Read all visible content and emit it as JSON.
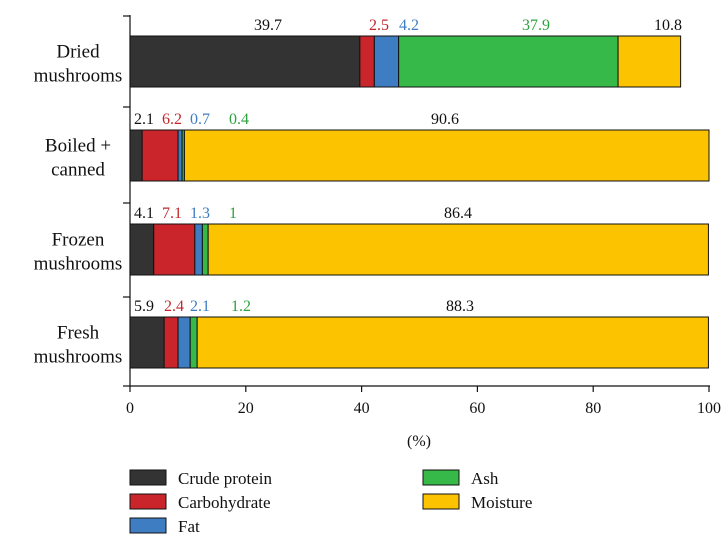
{
  "chart_data": {
    "type": "bar",
    "orientation": "horizontal",
    "stacked": true,
    "categories": [
      "Dried mushrooms",
      "Boiled + canned",
      "Frozen mushrooms",
      "Fresh mushrooms"
    ],
    "category_lines": [
      [
        "Dried",
        "mushrooms"
      ],
      [
        "Boiled +",
        "canned"
      ],
      [
        "Frozen",
        "mushrooms"
      ],
      [
        "Fresh",
        "mushrooms"
      ]
    ],
    "series": [
      {
        "name": "Crude protein",
        "color": "#333333",
        "label_color": "#111111",
        "values": [
          39.7,
          2.1,
          4.1,
          5.9
        ]
      },
      {
        "name": "Carbohydrate",
        "color": "#c9252b",
        "label_color": "#c0282d",
        "values": [
          2.5,
          6.2,
          7.1,
          2.4
        ]
      },
      {
        "name": "Fat",
        "color": "#3f7dc2",
        "label_color": "#3f7dc2",
        "values": [
          4.2,
          0.7,
          1.3,
          2.1
        ]
      },
      {
        "name": "Ash",
        "color": "#37b94a",
        "label_color": "#2ea13f",
        "values": [
          37.9,
          0.4,
          1,
          1.2
        ]
      },
      {
        "name": "Moisture",
        "color": "#fcc400",
        "label_color": "#111111",
        "values": [
          10.8,
          90.6,
          86.4,
          88.3
        ]
      }
    ],
    "data_labels": [
      [
        "39.7",
        "2.5",
        "4.2",
        "37.9",
        "10.8"
      ],
      [
        "2.1",
        "6.2",
        "0.7",
        "0.4",
        "90.6"
      ],
      [
        "4.1",
        "7.1",
        "1.3",
        "1",
        "86.4"
      ],
      [
        "5.9",
        "2.4",
        "2.1",
        "1.2",
        "88.3"
      ]
    ],
    "xlim": [
      0,
      100
    ],
    "xticks": [
      0,
      20,
      40,
      60,
      80,
      100
    ],
    "xlabel": "(%)",
    "title": "",
    "grid": false,
    "legend_position": "bottom"
  }
}
